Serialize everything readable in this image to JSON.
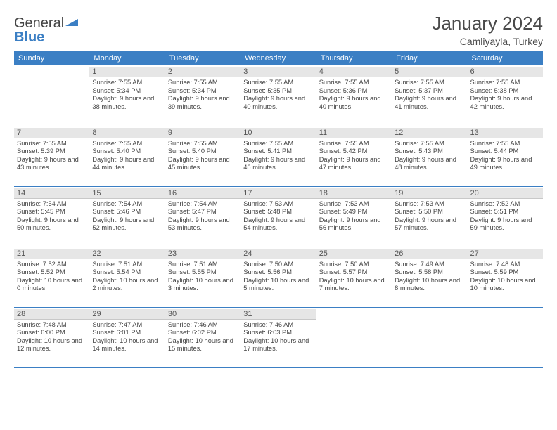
{
  "logo": {
    "word1": "General",
    "word2": "Blue"
  },
  "title": "January 2024",
  "location": "Camliyayla, Turkey",
  "day_headers": [
    "Sunday",
    "Monday",
    "Tuesday",
    "Wednesday",
    "Thursday",
    "Friday",
    "Saturday"
  ],
  "colors": {
    "header_bg": "#3b7fc4",
    "header_fg": "#ffffff",
    "daynum_bg": "#e6e6e6",
    "row_border": "#3b7fc4",
    "text": "#444444",
    "bg": "#ffffff"
  },
  "weeks": [
    [
      null,
      {
        "n": "1",
        "sunrise": "7:55 AM",
        "sunset": "5:34 PM",
        "day": "9 hours and 38 minutes."
      },
      {
        "n": "2",
        "sunrise": "7:55 AM",
        "sunset": "5:34 PM",
        "day": "9 hours and 39 minutes."
      },
      {
        "n": "3",
        "sunrise": "7:55 AM",
        "sunset": "5:35 PM",
        "day": "9 hours and 40 minutes."
      },
      {
        "n": "4",
        "sunrise": "7:55 AM",
        "sunset": "5:36 PM",
        "day": "9 hours and 40 minutes."
      },
      {
        "n": "5",
        "sunrise": "7:55 AM",
        "sunset": "5:37 PM",
        "day": "9 hours and 41 minutes."
      },
      {
        "n": "6",
        "sunrise": "7:55 AM",
        "sunset": "5:38 PM",
        "day": "9 hours and 42 minutes."
      }
    ],
    [
      {
        "n": "7",
        "sunrise": "7:55 AM",
        "sunset": "5:39 PM",
        "day": "9 hours and 43 minutes."
      },
      {
        "n": "8",
        "sunrise": "7:55 AM",
        "sunset": "5:40 PM",
        "day": "9 hours and 44 minutes."
      },
      {
        "n": "9",
        "sunrise": "7:55 AM",
        "sunset": "5:40 PM",
        "day": "9 hours and 45 minutes."
      },
      {
        "n": "10",
        "sunrise": "7:55 AM",
        "sunset": "5:41 PM",
        "day": "9 hours and 46 minutes."
      },
      {
        "n": "11",
        "sunrise": "7:55 AM",
        "sunset": "5:42 PM",
        "day": "9 hours and 47 minutes."
      },
      {
        "n": "12",
        "sunrise": "7:55 AM",
        "sunset": "5:43 PM",
        "day": "9 hours and 48 minutes."
      },
      {
        "n": "13",
        "sunrise": "7:55 AM",
        "sunset": "5:44 PM",
        "day": "9 hours and 49 minutes."
      }
    ],
    [
      {
        "n": "14",
        "sunrise": "7:54 AM",
        "sunset": "5:45 PM",
        "day": "9 hours and 50 minutes."
      },
      {
        "n": "15",
        "sunrise": "7:54 AM",
        "sunset": "5:46 PM",
        "day": "9 hours and 52 minutes."
      },
      {
        "n": "16",
        "sunrise": "7:54 AM",
        "sunset": "5:47 PM",
        "day": "9 hours and 53 minutes."
      },
      {
        "n": "17",
        "sunrise": "7:53 AM",
        "sunset": "5:48 PM",
        "day": "9 hours and 54 minutes."
      },
      {
        "n": "18",
        "sunrise": "7:53 AM",
        "sunset": "5:49 PM",
        "day": "9 hours and 56 minutes."
      },
      {
        "n": "19",
        "sunrise": "7:53 AM",
        "sunset": "5:50 PM",
        "day": "9 hours and 57 minutes."
      },
      {
        "n": "20",
        "sunrise": "7:52 AM",
        "sunset": "5:51 PM",
        "day": "9 hours and 59 minutes."
      }
    ],
    [
      {
        "n": "21",
        "sunrise": "7:52 AM",
        "sunset": "5:52 PM",
        "day": "10 hours and 0 minutes."
      },
      {
        "n": "22",
        "sunrise": "7:51 AM",
        "sunset": "5:54 PM",
        "day": "10 hours and 2 minutes."
      },
      {
        "n": "23",
        "sunrise": "7:51 AM",
        "sunset": "5:55 PM",
        "day": "10 hours and 3 minutes."
      },
      {
        "n": "24",
        "sunrise": "7:50 AM",
        "sunset": "5:56 PM",
        "day": "10 hours and 5 minutes."
      },
      {
        "n": "25",
        "sunrise": "7:50 AM",
        "sunset": "5:57 PM",
        "day": "10 hours and 7 minutes."
      },
      {
        "n": "26",
        "sunrise": "7:49 AM",
        "sunset": "5:58 PM",
        "day": "10 hours and 8 minutes."
      },
      {
        "n": "27",
        "sunrise": "7:48 AM",
        "sunset": "5:59 PM",
        "day": "10 hours and 10 minutes."
      }
    ],
    [
      {
        "n": "28",
        "sunrise": "7:48 AM",
        "sunset": "6:00 PM",
        "day": "10 hours and 12 minutes."
      },
      {
        "n": "29",
        "sunrise": "7:47 AM",
        "sunset": "6:01 PM",
        "day": "10 hours and 14 minutes."
      },
      {
        "n": "30",
        "sunrise": "7:46 AM",
        "sunset": "6:02 PM",
        "day": "10 hours and 15 minutes."
      },
      {
        "n": "31",
        "sunrise": "7:46 AM",
        "sunset": "6:03 PM",
        "day": "10 hours and 17 minutes."
      },
      null,
      null,
      null
    ]
  ],
  "labels": {
    "sunrise": "Sunrise:",
    "sunset": "Sunset:",
    "daylight": "Daylight:"
  }
}
